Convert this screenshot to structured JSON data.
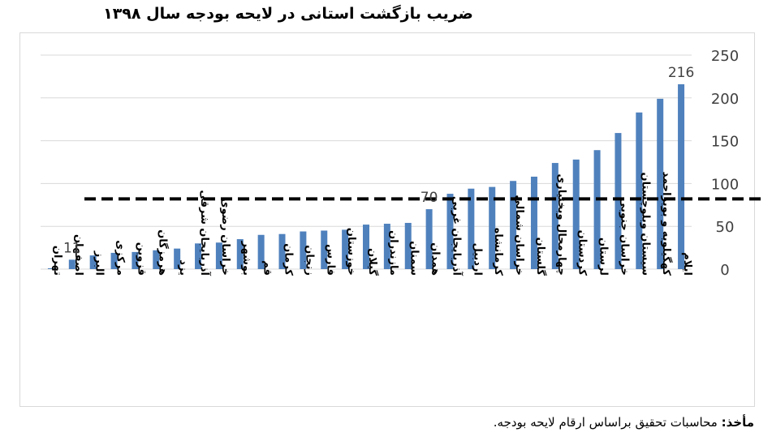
{
  "chart_data": {
    "type": "bar",
    "title": "ضریب بازگشت استانی در لایحه بودجه سال ۱۳۹۸",
    "categories": [
      "تهران",
      "اصفهان",
      "البرز",
      "مرکزی",
      "قزوین",
      "هرمزگان",
      "یزد",
      "آذربایجان شرقی",
      "خراسان رضوی",
      "بوشهر",
      "قم",
      "کرمان",
      "زنجان",
      "فارس",
      "خوزستان",
      "گیلان",
      "مازندران",
      "سمنان",
      "همدان",
      "آذربایجان غربی",
      "اردبیل",
      "کرمانشاه",
      "خراسان شمالی",
      "گلستان",
      "چهارمحال وبختیاری",
      "کردستان",
      "لرستان",
      "خراسان جنوبی",
      "سیستان وبلوچستان",
      "کهگیلویه و بویراحمد",
      "ایلام"
    ],
    "values": [
      1,
      11,
      16,
      19,
      20,
      22,
      24,
      30,
      31,
      35,
      40,
      41,
      44,
      45,
      46,
      52,
      53,
      54,
      70,
      88,
      94,
      96,
      103,
      108,
      124,
      128,
      139,
      159,
      183,
      199,
      216
    ],
    "data_labels": [
      {
        "index": 1,
        "text": "11"
      },
      {
        "index": 18,
        "text": "70"
      },
      {
        "index": 30,
        "text": "216"
      }
    ],
    "ylim": [
      0,
      250
    ],
    "yticks": [
      "0",
      "50",
      "100",
      "150",
      "200",
      "250"
    ],
    "y_axis_side": "right",
    "reference_line": {
      "value": 82,
      "style": "dashed"
    },
    "grid": true,
    "bar_color": "#4f81bd"
  },
  "source": {
    "label": "مأخذ:",
    "text": "محاسبات تحقیق براساس ارقام لایحه بودجه."
  }
}
